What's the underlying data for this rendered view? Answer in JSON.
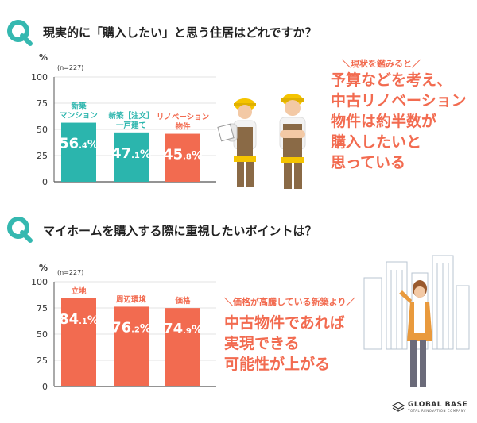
{
  "questions": [
    {
      "label": "現実的に「購入したい」と思う住居はどれですか？"
    },
    {
      "label": "マイホームを購入する際に重視したいポイントは？"
    }
  ],
  "chart_data": [
    {
      "type": "bar",
      "unit": "%",
      "n_label": "(n=227)",
      "ylim": [
        0,
        100
      ],
      "yticks": [
        "0",
        "25",
        "50",
        "75",
        "100"
      ],
      "categories": [
        "新築\nマンション",
        "新築［注文］\n一戸建て",
        "リノベーション\n物件"
      ],
      "values": [
        56.4,
        47.1,
        45.8
      ],
      "value_labels": [
        {
          "int": "56",
          "dec": ".4",
          "pct": "%"
        },
        {
          "int": "47",
          "dec": ".1",
          "pct": "%"
        },
        {
          "int": "45",
          "dec": ".8",
          "pct": "%"
        }
      ],
      "colors": [
        "#2bb5ad",
        "#2bb5ad",
        "#f26b50"
      ]
    },
    {
      "type": "bar",
      "unit": "%",
      "n_label": "(n=227)",
      "ylim": [
        0,
        100
      ],
      "yticks": [
        "0",
        "25",
        "50",
        "75",
        "100"
      ],
      "categories": [
        "立地",
        "周辺環境",
        "価格"
      ],
      "values": [
        84.1,
        76.2,
        74.9
      ],
      "value_labels": [
        {
          "int": "84",
          "dec": ".1",
          "pct": "%"
        },
        {
          "int": "76",
          "dec": ".2",
          "pct": "%"
        },
        {
          "int": "74",
          "dec": ".9",
          "pct": "%"
        }
      ],
      "colors": [
        "#f26b50",
        "#f26b50",
        "#f26b50"
      ]
    }
  ],
  "callouts": [
    {
      "lead": "＼現状を鑑みると／",
      "lines": [
        "予算などを考え、",
        "中古リノベーション",
        "物件は約半数が",
        "購入したいと",
        "思っている"
      ]
    },
    {
      "lead": "＼価格が高騰している新築より／",
      "lines": [
        "中古物件であれば",
        "実現できる",
        "可能性が上がる"
      ]
    }
  ],
  "logo": {
    "name": "GLOBAL BASE",
    "sub": "TOTAL RENOVATION COMPANY"
  },
  "colors": {
    "teal": "#2bb5ad",
    "coral": "#f26b50"
  }
}
